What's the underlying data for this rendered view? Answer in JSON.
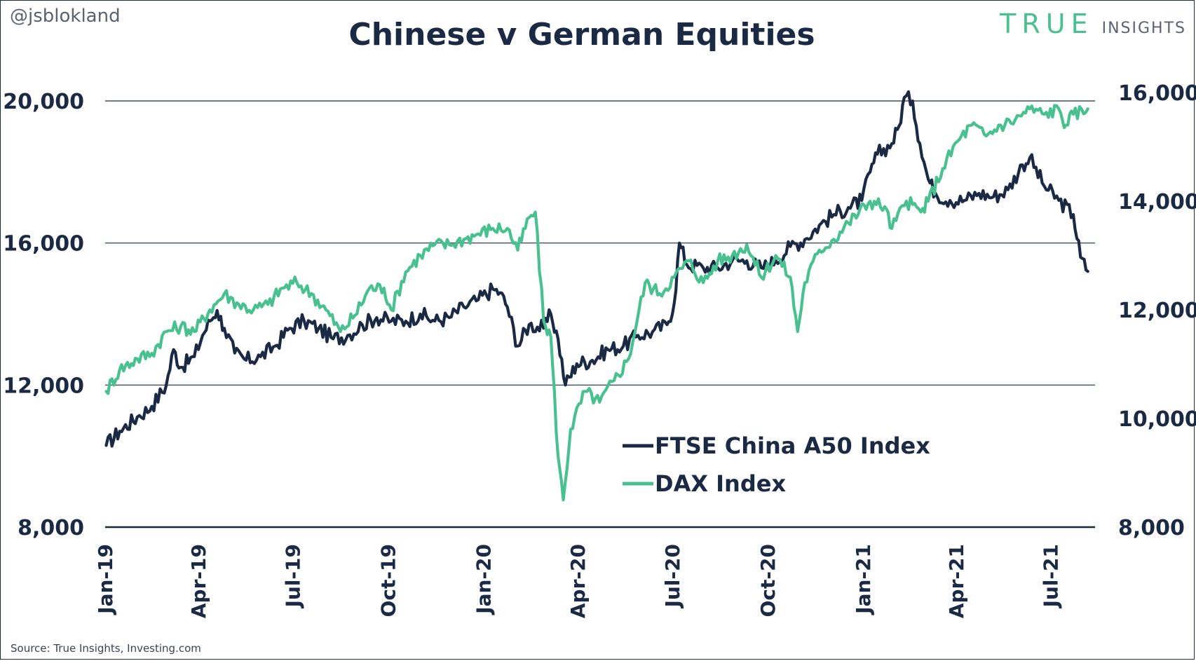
{
  "header": {
    "handle": "@jsblokland",
    "title": "Chinese v German Equities",
    "brand_main": "TRUE",
    "brand_sub": "INSIGHTS"
  },
  "footer": {
    "source": "Source: True Insights, Investing.com"
  },
  "colors": {
    "china": "#1b2a44",
    "dax": "#49c08f",
    "grid": "#1b2a44",
    "text": "#1b2a44"
  },
  "chart_data": {
    "type": "line",
    "title": "Chinese v German Equities",
    "grid": "horizontal",
    "legend_position": "center-right",
    "x_ticks": [
      "Jan-19",
      "Apr-19",
      "Jul-19",
      "Oct-19",
      "Jan-20",
      "Apr-20",
      "Jul-20",
      "Oct-20",
      "Jan-21",
      "Apr-21",
      "Jul-21"
    ],
    "x_range": [
      "2019-01-01",
      "2021-08-13"
    ],
    "y_left": {
      "ticks": [
        "8,000",
        "12,000",
        "16,000",
        "20,000"
      ],
      "range": [
        8000,
        21000
      ]
    },
    "y_right": {
      "ticks": [
        "8,000",
        "10,000",
        "12,000",
        "14,000",
        "16,000"
      ],
      "range": [
        8000,
        16500
      ]
    },
    "series": [
      {
        "name": "FTSE China A50 Index",
        "axis": "left",
        "color": "#1b2a44",
        "points": [
          [
            "2019-01-02",
            10300
          ],
          [
            "2019-01-15",
            10700
          ],
          [
            "2019-02-01",
            11100
          ],
          [
            "2019-02-15",
            11400
          ],
          [
            "2019-03-01",
            12000
          ],
          [
            "2019-03-08",
            13000
          ],
          [
            "2019-03-15",
            12500
          ],
          [
            "2019-03-28",
            12800
          ],
          [
            "2019-04-05",
            13400
          ],
          [
            "2019-04-12",
            13800
          ],
          [
            "2019-04-19",
            14100
          ],
          [
            "2019-04-26",
            13600
          ],
          [
            "2019-05-06",
            12900
          ],
          [
            "2019-05-17",
            12700
          ],
          [
            "2019-05-31",
            12800
          ],
          [
            "2019-06-14",
            13100
          ],
          [
            "2019-06-28",
            13600
          ],
          [
            "2019-07-12",
            13800
          ],
          [
            "2019-07-26",
            13600
          ],
          [
            "2019-08-09",
            13300
          ],
          [
            "2019-08-23",
            13400
          ],
          [
            "2019-09-06",
            13700
          ],
          [
            "2019-09-20",
            13900
          ],
          [
            "2019-10-04",
            13800
          ],
          [
            "2019-10-18",
            13800
          ],
          [
            "2019-11-01",
            14000
          ],
          [
            "2019-11-15",
            13800
          ],
          [
            "2019-11-29",
            13900
          ],
          [
            "2019-12-13",
            14200
          ],
          [
            "2019-12-27",
            14400
          ],
          [
            "2020-01-10",
            14700
          ],
          [
            "2020-01-17",
            14600
          ],
          [
            "2020-01-24",
            14200
          ],
          [
            "2020-02-03",
            13100
          ],
          [
            "2020-02-14",
            13700
          ],
          [
            "2020-02-28",
            13600
          ],
          [
            "2020-03-06",
            14000
          ],
          [
            "2020-03-13",
            13300
          ],
          [
            "2020-03-20",
            12000
          ],
          [
            "2020-03-31",
            12600
          ],
          [
            "2020-04-15",
            12700
          ],
          [
            "2020-04-30",
            13000
          ],
          [
            "2020-05-15",
            13100
          ],
          [
            "2020-05-29",
            13400
          ],
          [
            "2020-06-12",
            13500
          ],
          [
            "2020-06-26",
            13700
          ],
          [
            "2020-07-03",
            14300
          ],
          [
            "2020-07-08",
            16000
          ],
          [
            "2020-07-15",
            15400
          ],
          [
            "2020-07-31",
            15300
          ],
          [
            "2020-08-14",
            15300
          ],
          [
            "2020-08-28",
            15500
          ],
          [
            "2020-09-11",
            15500
          ],
          [
            "2020-09-25",
            15300
          ],
          [
            "2020-10-09",
            15500
          ],
          [
            "2020-10-23",
            15900
          ],
          [
            "2020-11-06",
            16100
          ],
          [
            "2020-11-20",
            16500
          ],
          [
            "2020-12-04",
            16800
          ],
          [
            "2020-12-18",
            17000
          ],
          [
            "2020-12-31",
            17200
          ],
          [
            "2021-01-08",
            18000
          ],
          [
            "2021-01-15",
            18500
          ],
          [
            "2021-01-29",
            18800
          ],
          [
            "2021-02-05",
            19300
          ],
          [
            "2021-02-10",
            20100
          ],
          [
            "2021-02-18",
            20000
          ],
          [
            "2021-02-25",
            18800
          ],
          [
            "2021-03-05",
            17800
          ],
          [
            "2021-03-12",
            17400
          ],
          [
            "2021-03-26",
            17200
          ],
          [
            "2021-04-09",
            17200
          ],
          [
            "2021-04-23",
            17400
          ],
          [
            "2021-05-07",
            17300
          ],
          [
            "2021-05-21",
            17500
          ],
          [
            "2021-06-04",
            18200
          ],
          [
            "2021-06-11",
            18400
          ],
          [
            "2021-06-25",
            17600
          ],
          [
            "2021-07-09",
            17200
          ],
          [
            "2021-07-23",
            16800
          ],
          [
            "2021-07-30",
            15600
          ],
          [
            "2021-08-06",
            15200
          ]
        ]
      },
      {
        "name": "DAX Index",
        "axis": "right",
        "color": "#49c08f",
        "points": [
          [
            "2019-01-02",
            10500
          ],
          [
            "2019-01-15",
            10900
          ],
          [
            "2019-02-01",
            11100
          ],
          [
            "2019-02-15",
            11200
          ],
          [
            "2019-03-01",
            11600
          ],
          [
            "2019-03-15",
            11700
          ],
          [
            "2019-03-28",
            11600
          ],
          [
            "2019-04-12",
            12000
          ],
          [
            "2019-04-26",
            12300
          ],
          [
            "2019-05-10",
            12100
          ],
          [
            "2019-05-24",
            12000
          ],
          [
            "2019-06-07",
            12100
          ],
          [
            "2019-06-21",
            12400
          ],
          [
            "2019-07-05",
            12500
          ],
          [
            "2019-07-19",
            12300
          ],
          [
            "2019-08-02",
            12000
          ],
          [
            "2019-08-16",
            11600
          ],
          [
            "2019-08-30",
            11900
          ],
          [
            "2019-09-13",
            12400
          ],
          [
            "2019-09-27",
            12400
          ],
          [
            "2019-10-04",
            12000
          ],
          [
            "2019-10-18",
            12700
          ],
          [
            "2019-11-01",
            13000
          ],
          [
            "2019-11-15",
            13200
          ],
          [
            "2019-11-29",
            13200
          ],
          [
            "2019-12-13",
            13300
          ],
          [
            "2019-12-27",
            13400
          ],
          [
            "2020-01-10",
            13500
          ],
          [
            "2020-01-24",
            13500
          ],
          [
            "2020-02-03",
            13100
          ],
          [
            "2020-02-14",
            13700
          ],
          [
            "2020-02-20",
            13800
          ],
          [
            "2020-02-28",
            11800
          ],
          [
            "2020-03-06",
            11500
          ],
          [
            "2020-03-13",
            9300
          ],
          [
            "2020-03-18",
            8500
          ],
          [
            "2020-03-25",
            9800
          ],
          [
            "2020-04-08",
            10500
          ],
          [
            "2020-04-22",
            10300
          ],
          [
            "2020-05-06",
            10700
          ],
          [
            "2020-05-20",
            11100
          ],
          [
            "2020-06-05",
            12500
          ],
          [
            "2020-06-19",
            12300
          ],
          [
            "2020-07-03",
            12600
          ],
          [
            "2020-07-17",
            12900
          ],
          [
            "2020-07-31",
            12500
          ],
          [
            "2020-08-14",
            12900
          ],
          [
            "2020-08-28",
            13000
          ],
          [
            "2020-09-11",
            13200
          ],
          [
            "2020-09-25",
            12600
          ],
          [
            "2020-10-09",
            13000
          ],
          [
            "2020-10-23",
            12600
          ],
          [
            "2020-10-30",
            11600
          ],
          [
            "2020-11-06",
            12500
          ],
          [
            "2020-11-20",
            13100
          ],
          [
            "2020-12-04",
            13300
          ],
          [
            "2020-12-18",
            13600
          ],
          [
            "2021-01-08",
            14000
          ],
          [
            "2021-01-22",
            13900
          ],
          [
            "2021-01-29",
            13500
          ],
          [
            "2021-02-12",
            14000
          ],
          [
            "2021-02-26",
            13800
          ],
          [
            "2021-03-05",
            14000
          ],
          [
            "2021-03-19",
            14600
          ],
          [
            "2021-04-02",
            15100
          ],
          [
            "2021-04-16",
            15400
          ],
          [
            "2021-04-30",
            15200
          ],
          [
            "2021-05-14",
            15400
          ],
          [
            "2021-05-28",
            15500
          ],
          [
            "2021-06-11",
            15700
          ],
          [
            "2021-06-25",
            15600
          ],
          [
            "2021-07-09",
            15700
          ],
          [
            "2021-07-16",
            15400
          ],
          [
            "2021-07-23",
            15600
          ],
          [
            "2021-08-06",
            15700
          ]
        ]
      }
    ]
  }
}
